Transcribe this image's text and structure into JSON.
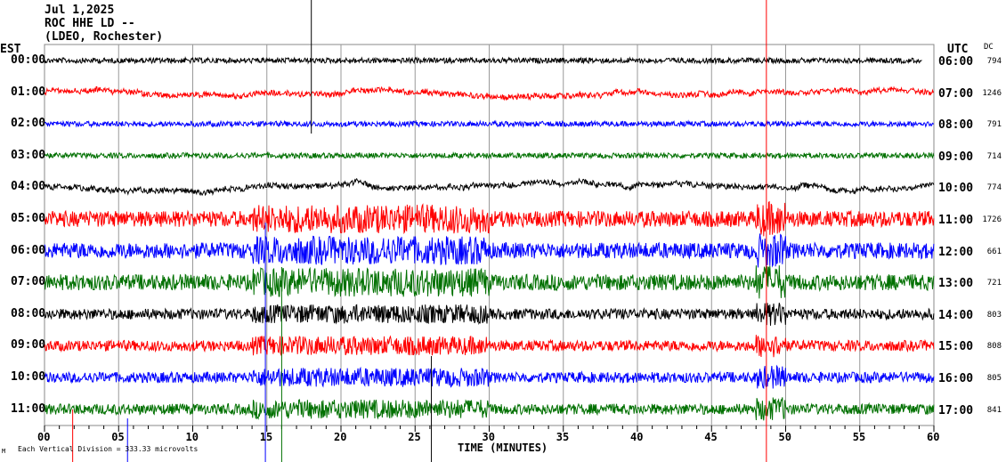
{
  "header": {
    "date": "Jul 1,2025",
    "station": "ROC HHE LD --",
    "network": "(LDEO, Rochester)"
  },
  "left_axis_title": "EST",
  "right_axis_title": "UTC",
  "dc_title": "DC",
  "footer": {
    "scale_note": "Each Vertical Division =  333.33 microvolts",
    "logo_mark": "M"
  },
  "chart_data": {
    "type": "line",
    "xlabel": "TIME (MINUTES)",
    "xlim": [
      0,
      60
    ],
    "x_ticks": [
      "00",
      "05",
      "10",
      "15",
      "20",
      "25",
      "30",
      "35",
      "40",
      "45",
      "50",
      "55",
      "60"
    ],
    "grid": true,
    "trace_colors": [
      "#000000",
      "#ff0000",
      "#0000ff",
      "#007000"
    ],
    "rows": [
      {
        "est": "00:00",
        "utc": "06:00",
        "dc": "794"
      },
      {
        "est": "01:00",
        "utc": "07:00",
        "dc": "1246"
      },
      {
        "est": "02:00",
        "utc": "08:00",
        "dc": "791"
      },
      {
        "est": "03:00",
        "utc": "09:00",
        "dc": "714"
      },
      {
        "est": "04:00",
        "utc": "10:00",
        "dc": "774"
      },
      {
        "est": "05:00",
        "utc": "11:00",
        "dc": "1726"
      },
      {
        "est": "06:00",
        "utc": "12:00",
        "dc": "661"
      },
      {
        "est": "07:00",
        "utc": "13:00",
        "dc": "721"
      },
      {
        "est": "08:00",
        "utc": "14:00",
        "dc": "803"
      },
      {
        "est": "09:00",
        "utc": "15:00",
        "dc": "808"
      },
      {
        "est": "10:00",
        "utc": "16:00",
        "dc": "805"
      },
      {
        "est": "11:00",
        "utc": "17:00",
        "dc": "841"
      }
    ]
  }
}
